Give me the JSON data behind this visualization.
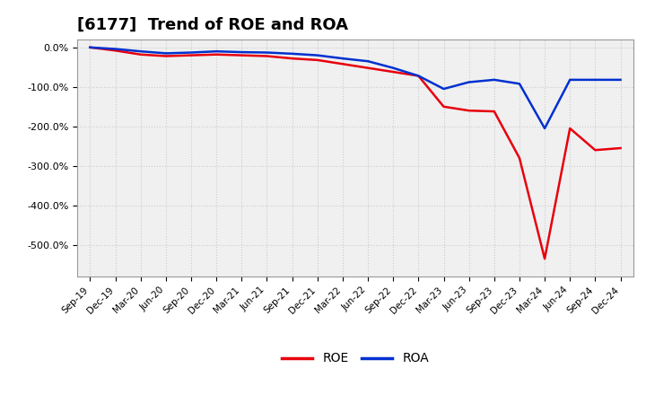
{
  "title": "[6177]  Trend of ROE and ROA",
  "x_labels": [
    "Sep-19",
    "Dec-19",
    "Mar-20",
    "Jun-20",
    "Sep-20",
    "Dec-20",
    "Mar-21",
    "Jun-21",
    "Sep-21",
    "Dec-21",
    "Mar-22",
    "Jun-22",
    "Sep-22",
    "Dec-22",
    "Mar-23",
    "Jun-23",
    "Sep-23",
    "Dec-23",
    "Mar-24",
    "Jun-24",
    "Sep-24",
    "Dec-24"
  ],
  "roe": [
    0.0,
    -8.0,
    -18.0,
    -22.0,
    -20.0,
    -18.0,
    -20.0,
    -22.0,
    -28.0,
    -32.0,
    -42.0,
    -52.0,
    -62.0,
    -72.0,
    -150.0,
    -160.0,
    -162.0,
    -280.0,
    -535.0,
    -205.0,
    -260.0,
    -255.0
  ],
  "roa": [
    0.0,
    -4.0,
    -10.0,
    -15.0,
    -13.0,
    -10.0,
    -12.0,
    -13.0,
    -16.0,
    -20.0,
    -28.0,
    -35.0,
    -52.0,
    -72.0,
    -105.0,
    -88.0,
    -82.0,
    -92.0,
    -205.0,
    -82.0,
    -82.0,
    -82.0
  ],
  "roe_color": "#e8000d",
  "roa_color": "#0030d0",
  "background_color": "#ffffff",
  "plot_bg_color": "#f0f0f0",
  "grid_color": "#cccccc",
  "ylim": [
    -580,
    20
  ],
  "yticks": [
    0,
    -100,
    -200,
    -300,
    -400,
    -500
  ],
  "title_fontsize": 13,
  "legend_labels": [
    "ROE",
    "ROA"
  ]
}
